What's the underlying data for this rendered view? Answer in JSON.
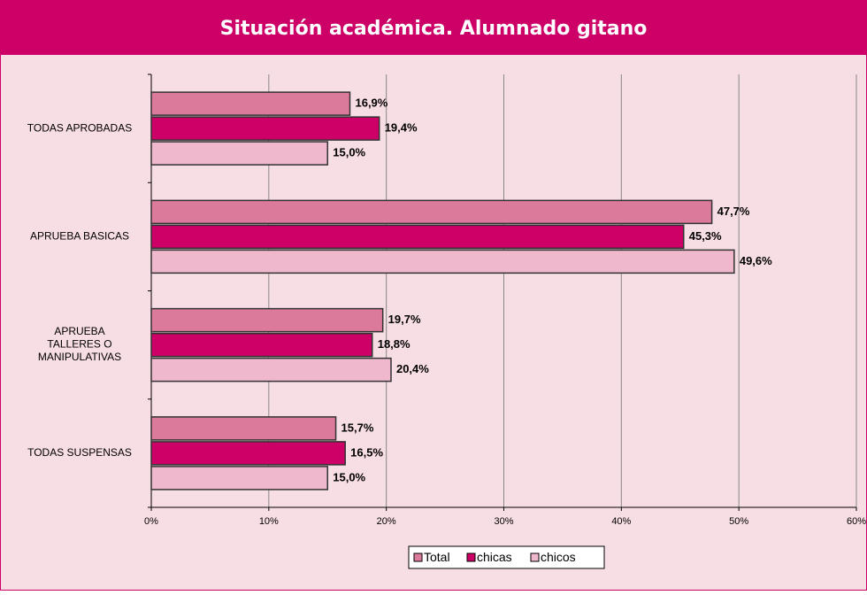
{
  "chart_data": {
    "type": "bar",
    "orientation": "horizontal",
    "title": "Situación académica. Alumnado gitano",
    "categories": [
      "TODAS APROBADAS",
      "APRUEBA BASICAS",
      "APRUEBA\nTALLERES O\nMANIPULATIVAS",
      "TODAS SUSPENSAS"
    ],
    "series": [
      {
        "name": "Total",
        "color": "#dc7a9c",
        "values": [
          16.9,
          47.7,
          19.7,
          15.7
        ],
        "value_labels": [
          "16,9%",
          "47,7%",
          "19,7%",
          "15,7%"
        ]
      },
      {
        "name": "chicas",
        "color": "#cc0066",
        "values": [
          19.4,
          45.3,
          18.8,
          16.5
        ],
        "value_labels": [
          "19,4%",
          "45,3%",
          "18,8%",
          "16,5%"
        ]
      },
      {
        "name": "chicos",
        "color": "#f0b8cc",
        "values": [
          15.0,
          49.6,
          20.4,
          15.0
        ],
        "value_labels": [
          "15,0%",
          "49,6%",
          "20,4%",
          "15,0%"
        ]
      }
    ],
    "xlim": [
      0,
      60
    ],
    "xticks": [
      {
        "value": 0,
        "label": "0%"
      },
      {
        "value": 10,
        "label": "10%"
      },
      {
        "value": 20,
        "label": "20%"
      },
      {
        "value": 30,
        "label": "30%"
      },
      {
        "value": 40,
        "label": "40%"
      },
      {
        "value": 50,
        "label": "50%"
      },
      {
        "value": 60,
        "label": "60%"
      }
    ],
    "grid": true,
    "legend": "bottom"
  }
}
